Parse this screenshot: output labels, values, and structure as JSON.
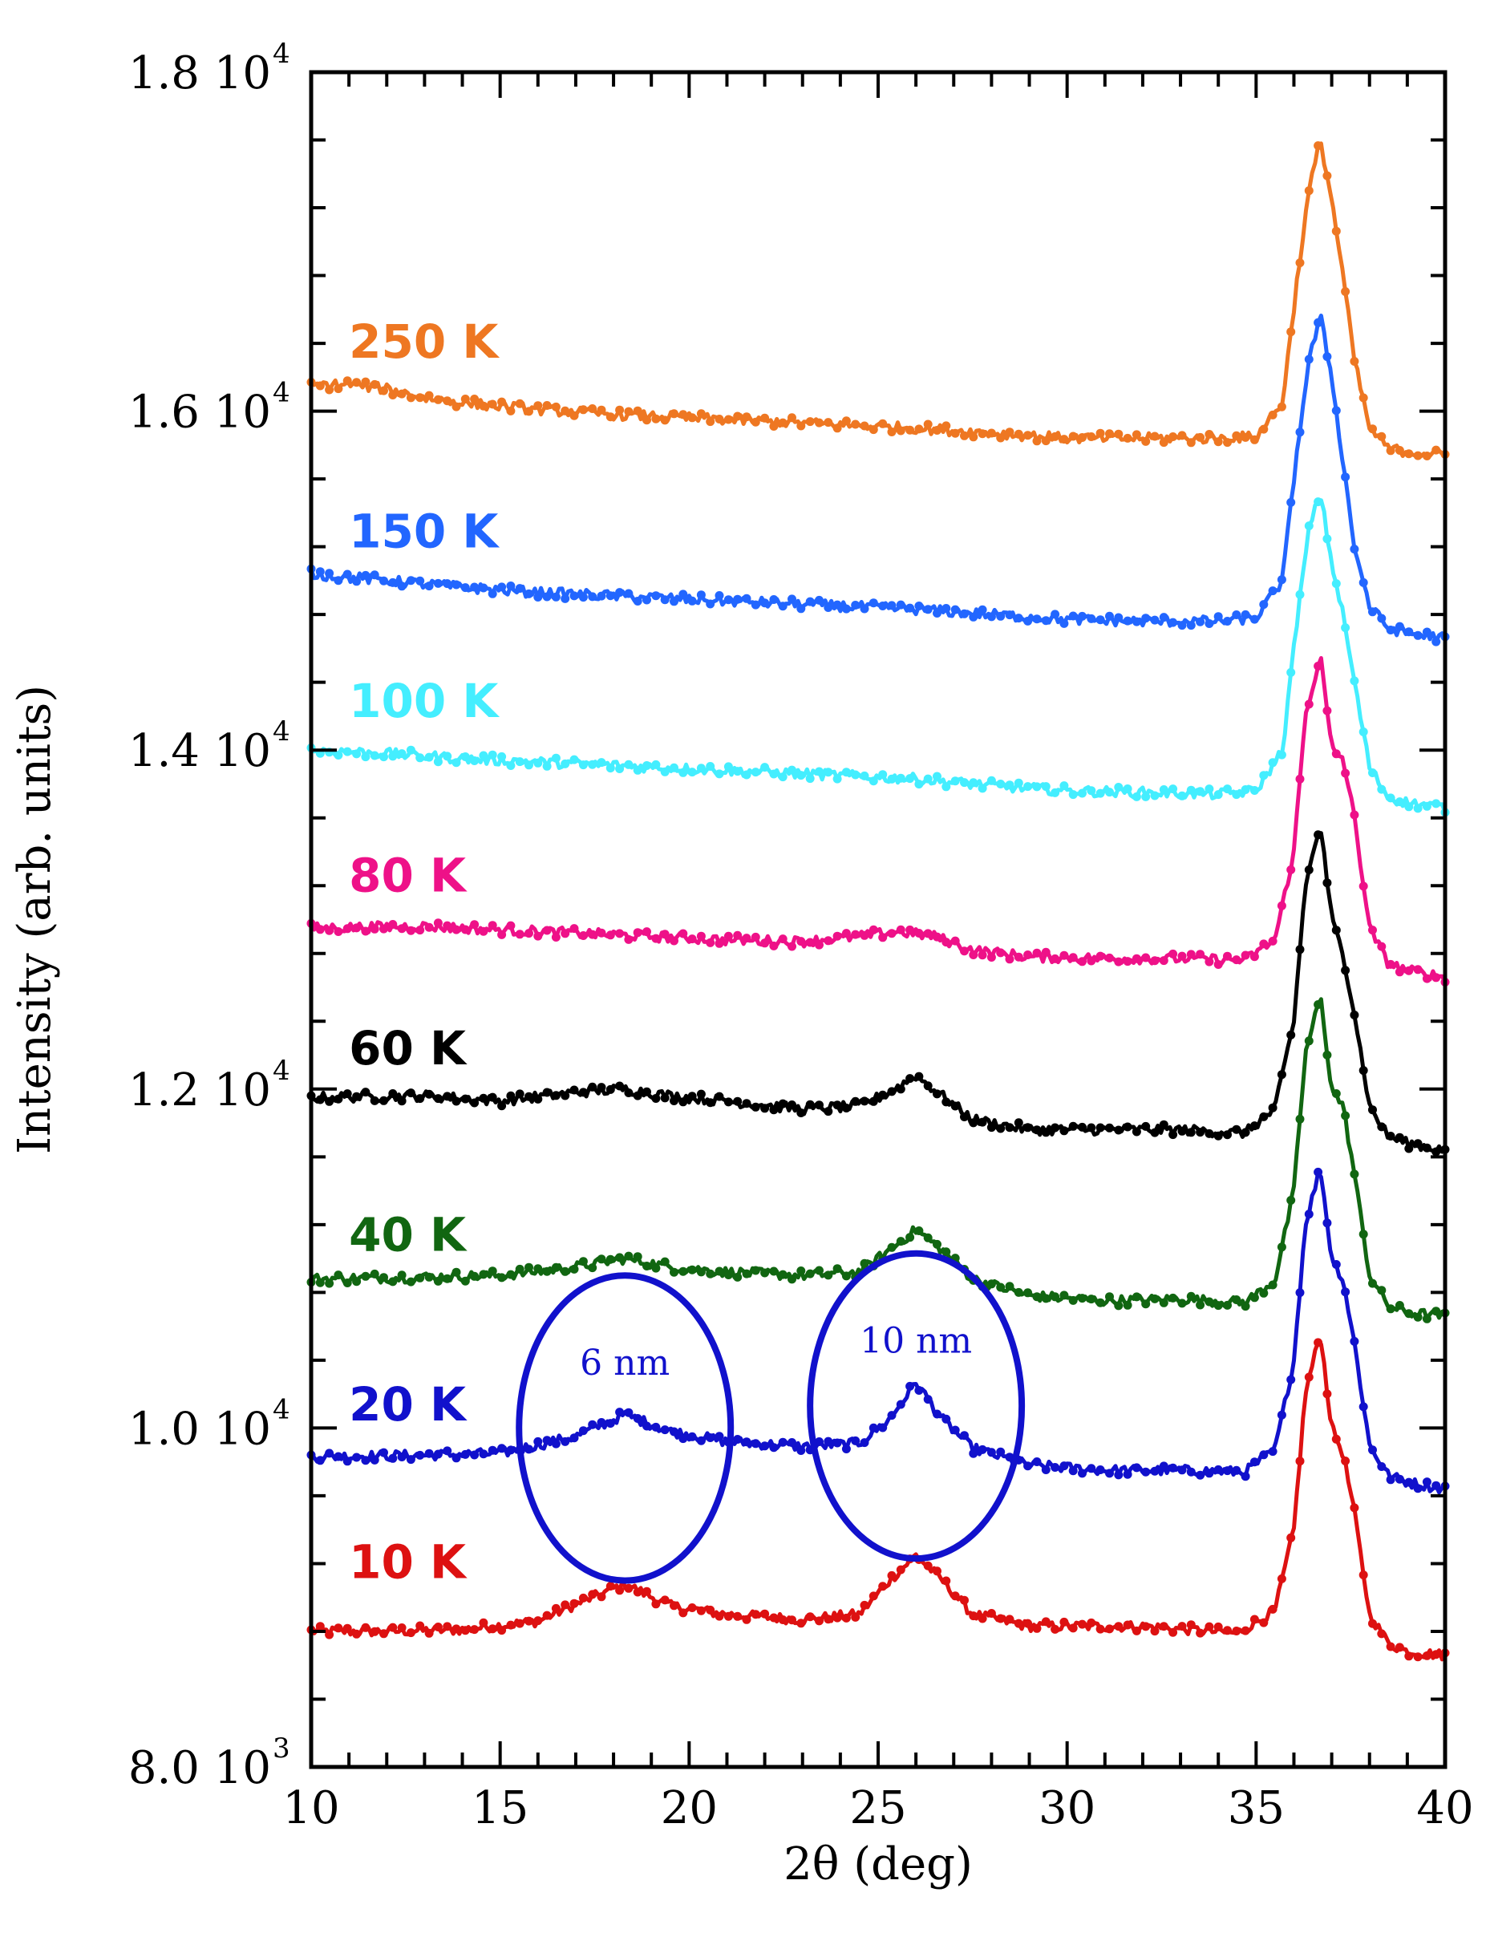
{
  "chart_data": {
    "type": "line",
    "title": "",
    "xlabel": "2θ  (deg)",
    "ylabel": "Intensity (arb. units)",
    "xlim": [
      10,
      40
    ],
    "ylim": [
      8000,
      18000
    ],
    "x_ticks": [
      {
        "value": 10,
        "label": "10"
      },
      {
        "value": 15,
        "label": "15"
      },
      {
        "value": 20,
        "label": "20"
      },
      {
        "value": 25,
        "label": "25"
      },
      {
        "value": 30,
        "label": "30"
      },
      {
        "value": 35,
        "label": "35"
      },
      {
        "value": 40,
        "label": "40"
      }
    ],
    "y_ticks": [
      {
        "value": 8000,
        "mantissa": "8.0 10",
        "exponent": "3"
      },
      {
        "value": 10000,
        "mantissa": "1.0 10",
        "exponent": "4"
      },
      {
        "value": 12000,
        "mantissa": "1.2 10",
        "exponent": "4"
      },
      {
        "value": 14000,
        "mantissa": "1.4 10",
        "exponent": "4"
      },
      {
        "value": 16000,
        "mantissa": "1.6 10",
        "exponent": "4"
      },
      {
        "value": 18000,
        "mantissa": "1.8 10",
        "exponent": "4"
      }
    ],
    "series": [
      {
        "name": "10 K",
        "color": "#dd1111",
        "label_value": 9200,
        "x": [
          10,
          12,
          14,
          16,
          17,
          18.3,
          19.5,
          21,
          23,
          24.5,
          25.3,
          26,
          26.7,
          27.5,
          29,
          32,
          34.5,
          35.5,
          36,
          36.3,
          36.7,
          37.0,
          37.3,
          37.6,
          38.0,
          38.5,
          39.0,
          40
        ],
        "y": [
          8800,
          8800,
          8810,
          8860,
          8960,
          9080,
          8950,
          8900,
          8870,
          8900,
          9100,
          9250,
          9100,
          8900,
          8830,
          8830,
          8790,
          8920,
          9400,
          10200,
          10560,
          10000,
          9850,
          9500,
          8900,
          8730,
          8680,
          8660
        ]
      },
      {
        "name": "20 K",
        "color": "#1111cc",
        "label_value": 10130,
        "x": [
          10,
          13,
          15,
          17,
          18.3,
          19.5,
          21,
          23,
          24.5,
          25.3,
          26,
          26.7,
          27.5,
          29,
          31,
          33,
          34.7,
          35.5,
          36,
          36.3,
          36.7,
          37.0,
          37.3,
          37.6,
          38.0,
          38.5,
          39.0,
          40
        ],
        "y": [
          9830,
          9840,
          9850,
          9950,
          10080,
          9980,
          9920,
          9890,
          9910,
          10050,
          10270,
          10050,
          9880,
          9780,
          9750,
          9750,
          9740,
          9870,
          10400,
          11200,
          11540,
          11000,
          10880,
          10500,
          9900,
          9720,
          9680,
          9640
        ]
      },
      {
        "name": "40 K",
        "color": "#116611",
        "label_value": 11130,
        "x": [
          10,
          13,
          15,
          17,
          18.3,
          19.5,
          21,
          23,
          24.5,
          25.3,
          26,
          26.7,
          27.5,
          29,
          31,
          33,
          34.7,
          35.5,
          36,
          36.3,
          36.7,
          37.0,
          37.3,
          37.6,
          38.0,
          38.5,
          39.0,
          40
        ],
        "y": [
          10880,
          10890,
          10900,
          10950,
          11000,
          10950,
          10920,
          10900,
          10920,
          11050,
          11170,
          11050,
          10880,
          10780,
          10750,
          10760,
          10740,
          10870,
          11400,
          12200,
          12550,
          12000,
          11900,
          11500,
          10900,
          10720,
          10680,
          10660
        ]
      },
      {
        "name": "60 K",
        "color": "#000000",
        "label_value": 12230,
        "x": [
          10,
          13,
          15,
          17,
          18.3,
          19.5,
          21,
          23,
          24.5,
          25.3,
          26,
          26.7,
          27.5,
          29,
          31,
          33,
          34.7,
          35.5,
          36,
          36.3,
          36.7,
          37.0,
          37.3,
          37.6,
          38.0,
          38.5,
          39.0,
          40
        ],
        "y": [
          11950,
          11960,
          11930,
          11980,
          12000,
          11960,
          11930,
          11880,
          11900,
          11980,
          12080,
          11960,
          11820,
          11760,
          11760,
          11760,
          11740,
          11880,
          12400,
          13200,
          13560,
          13000,
          12800,
          12450,
          11900,
          11720,
          11680,
          11640
        ]
      },
      {
        "name": "80 K",
        "color": "#ee1188",
        "label_value": 13250,
        "x": [
          10,
          13,
          15,
          17,
          19,
          21,
          23,
          24.5,
          25.5,
          26.5,
          27.5,
          29,
          31,
          33,
          34.7,
          35.5,
          36,
          36.3,
          36.7,
          37.0,
          37.3,
          37.6,
          38.0,
          38.5,
          39.0,
          40
        ],
        "y": [
          12950,
          12960,
          12940,
          12920,
          12900,
          12880,
          12870,
          12900,
          12930,
          12900,
          12820,
          12780,
          12770,
          12770,
          12760,
          12880,
          13400,
          14200,
          14560,
          14000,
          13950,
          13600,
          12950,
          12740,
          12700,
          12660
        ]
      },
      {
        "name": "100 K",
        "color": "#44eeff",
        "label_value": 14280,
        "x": [
          10,
          12,
          14,
          16,
          18,
          20,
          22,
          24,
          26,
          28,
          30,
          32,
          34,
          35,
          35.7,
          36.1,
          36.4,
          36.7,
          37.0,
          37.3,
          37.6,
          38.0,
          38.5,
          39.0,
          40
        ],
        "y": [
          14000,
          13980,
          13950,
          13930,
          13910,
          13890,
          13870,
          13850,
          13830,
          13790,
          13760,
          13750,
          13740,
          13760,
          14000,
          14800,
          15300,
          15520,
          15100,
          14800,
          14400,
          13900,
          13720,
          13690,
          13660
        ]
      },
      {
        "name": "150 K",
        "color": "#2266ff",
        "label_value": 15280,
        "x": [
          10,
          12,
          14,
          16,
          18,
          20,
          22,
          24,
          26,
          28,
          30,
          32,
          34,
          35,
          35.7,
          36.1,
          36.4,
          36.7,
          37.0,
          37.3,
          37.6,
          38.0,
          38.5,
          39.0,
          40
        ],
        "y": [
          15040,
          15000,
          14960,
          14930,
          14910,
          14890,
          14870,
          14850,
          14830,
          14800,
          14770,
          14760,
          14760,
          14780,
          15000,
          15800,
          16300,
          16560,
          16200,
          15700,
          15200,
          14850,
          14720,
          14690,
          14660
        ]
      },
      {
        "name": "250 K",
        "color": "#ee7722",
        "label_value": 16400,
        "x": [
          10,
          11,
          12,
          13,
          14,
          16,
          18,
          20,
          22,
          24,
          26,
          28,
          30,
          32,
          34,
          35,
          35.7,
          36.1,
          36.4,
          36.7,
          37.0,
          37.3,
          37.6,
          38.0,
          38.5,
          39.0,
          40
        ],
        "y": [
          16150,
          16160,
          16130,
          16080,
          16050,
          16010,
          15980,
          15960,
          15940,
          15920,
          15900,
          15870,
          15840,
          15840,
          15840,
          15850,
          16050,
          16800,
          17300,
          17600,
          17250,
          16800,
          16300,
          15900,
          15780,
          15760,
          15740
        ]
      }
    ],
    "annotations": [
      {
        "text": "6 nm",
        "color": "#1111cc",
        "x": 18.3,
        "y": 10000,
        "rx": 2.8,
        "ry": 900
      },
      {
        "text": "10 nm",
        "color": "#1111cc",
        "x": 26.0,
        "y": 10130,
        "rx": 2.8,
        "ry": 900
      }
    ]
  }
}
